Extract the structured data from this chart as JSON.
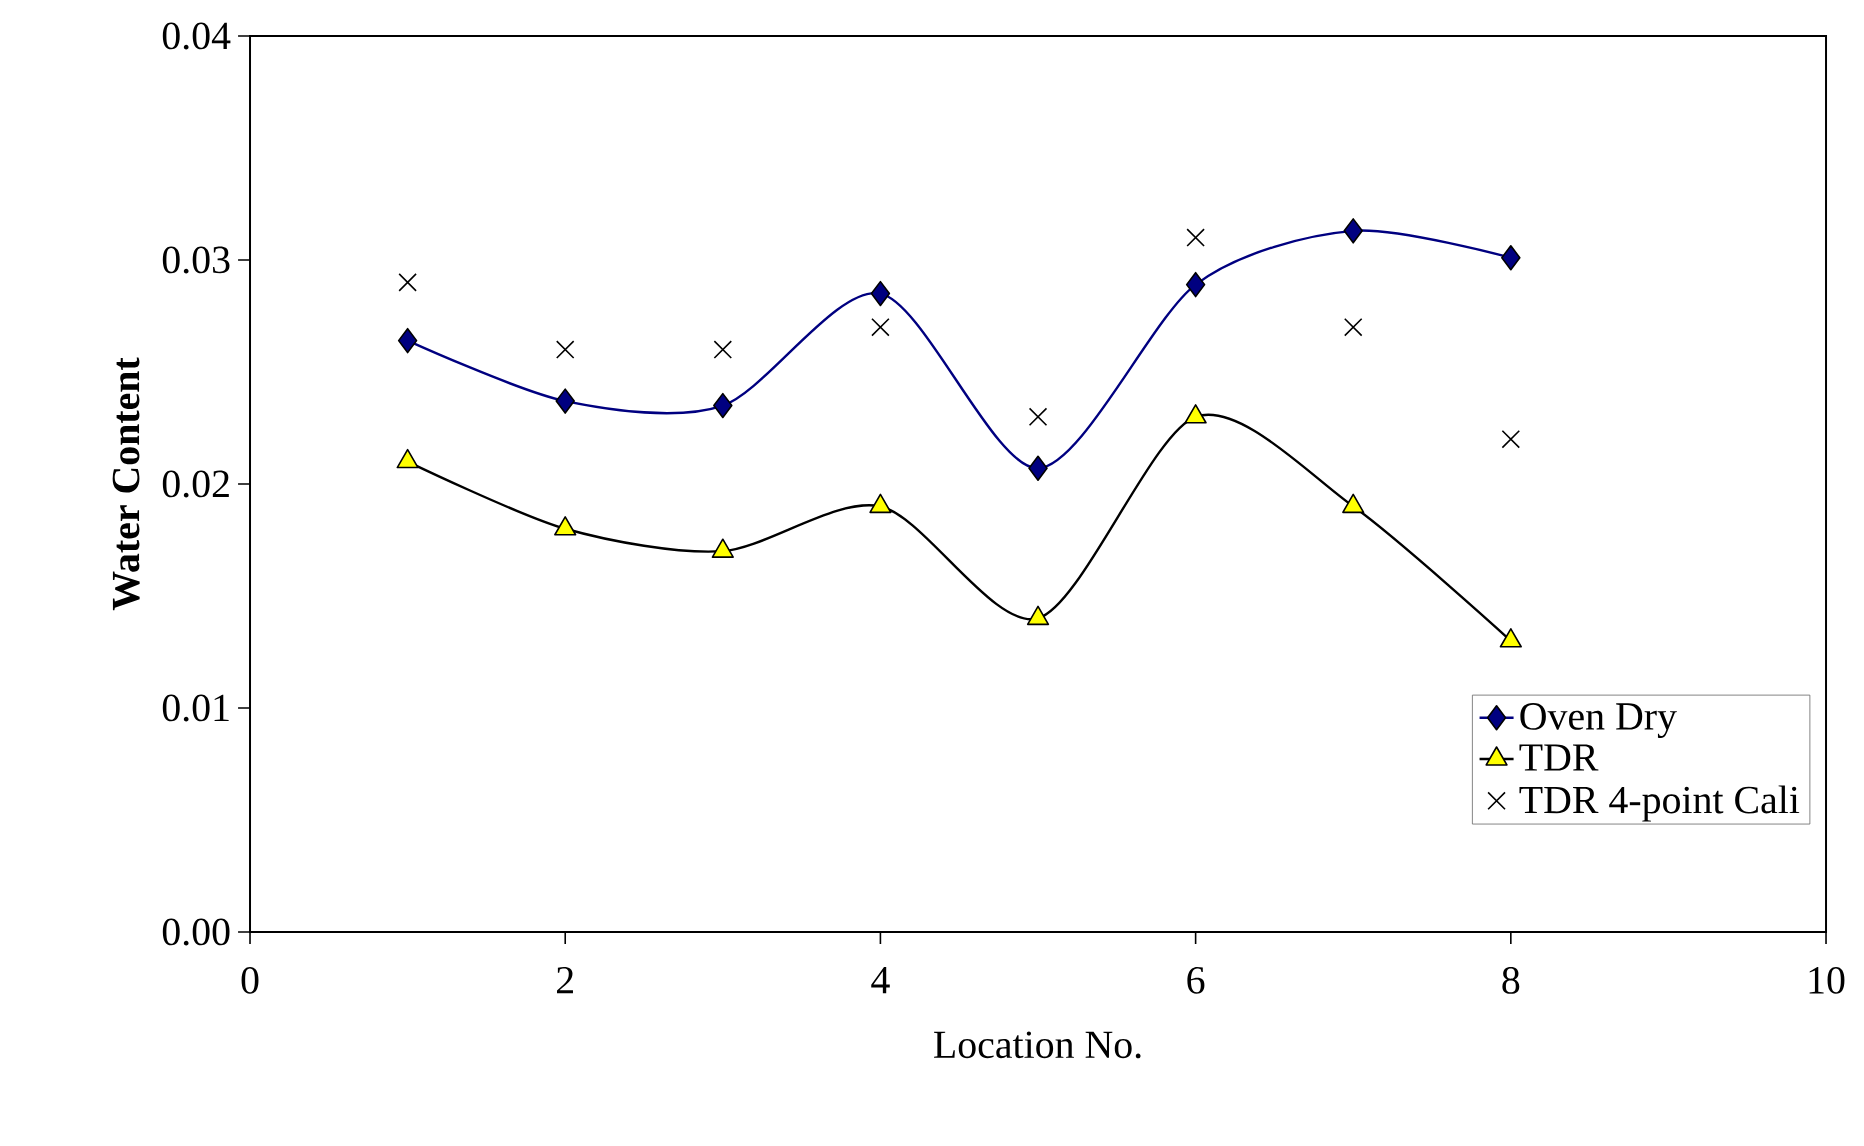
{
  "chart_data": {
    "type": "line",
    "xlabel": "Location No.",
    "ylabel": "Water Content",
    "xlim": [
      0,
      10
    ],
    "xticks": [
      0,
      2,
      4,
      6,
      8,
      10
    ],
    "ylim": [
      0,
      0.04
    ],
    "yticks": [
      {
        "value": 0,
        "label": "0.00"
      },
      {
        "value": 0.01,
        "label": "0.01"
      },
      {
        "value": 0.02,
        "label": "0.02"
      },
      {
        "value": 0.03,
        "label": "0.03"
      },
      {
        "value": 0.04,
        "label": "0.04"
      }
    ],
    "x": [
      1,
      2,
      3,
      4,
      5,
      6,
      7,
      8
    ],
    "legend": "bottom right",
    "grid": false,
    "series": [
      {
        "name": "Oven Dry",
        "color": "#000080",
        "marker": "diamond",
        "line_style": "solid",
        "values": [
          0.0264,
          0.0237,
          0.0235,
          0.0285,
          0.0207,
          0.0289,
          0.0313,
          0.0301
        ]
      },
      {
        "name": "TDR",
        "color": "#000000",
        "marker": "triangle",
        "line_style": "solid",
        "values": [
          0.021,
          0.018,
          0.017,
          0.019,
          0.014,
          0.023,
          0.019,
          0.013
        ]
      },
      {
        "name": "TDR 4-point Cali",
        "type": "scatter",
        "color": "#000000",
        "marker": "cross",
        "values": [
          0.029,
          0.026,
          0.026,
          0.027,
          0.023,
          0.031,
          0.027,
          0.022
        ]
      }
    ]
  }
}
